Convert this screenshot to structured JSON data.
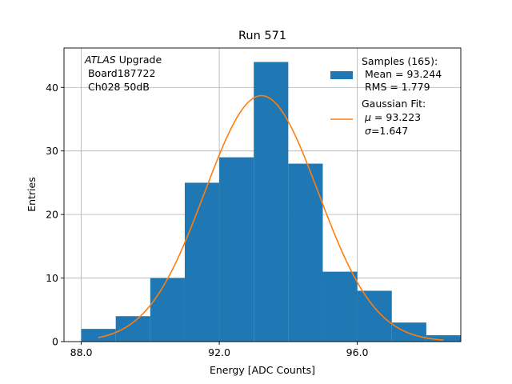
{
  "chart_data": {
    "type": "bar",
    "title": "Run 571",
    "xlabel": "Energy [ADC Counts]",
    "ylabel": "Entries",
    "xlim": [
      87.5,
      99.0
    ],
    "ylim": [
      0,
      46.2
    ],
    "x_ticks": [
      88.0,
      92.0,
      96.0
    ],
    "x_tick_labels": [
      "88.0",
      "92.0",
      "96.0"
    ],
    "y_ticks": [
      0,
      10,
      20,
      30,
      40
    ],
    "y_tick_labels": [
      "0",
      "10",
      "20",
      "30",
      "40"
    ],
    "grid": true,
    "legend_position": "top-right",
    "histogram": {
      "name": "Samples (165):",
      "color": "#1f77b4",
      "bin_edges": [
        88.0,
        89.0,
        90.0,
        91.0,
        92.0,
        93.0,
        94.0,
        95.0,
        96.0,
        97.0,
        98.0,
        99.0
      ],
      "bins": [
        {
          "x0": 88.0,
          "x1": 89.0,
          "count": 2
        },
        {
          "x0": 89.0,
          "x1": 90.0,
          "count": 4
        },
        {
          "x0": 90.0,
          "x1": 91.0,
          "count": 10
        },
        {
          "x0": 91.0,
          "x1": 92.0,
          "count": 25
        },
        {
          "x0": 92.0,
          "x1": 93.0,
          "count": 29
        },
        {
          "x0": 93.0,
          "x1": 94.0,
          "count": 44
        },
        {
          "x0": 94.0,
          "x1": 95.0,
          "count": 28
        },
        {
          "x0": 95.0,
          "x1": 96.0,
          "count": 11
        },
        {
          "x0": 96.0,
          "x1": 97.0,
          "count": 8
        },
        {
          "x0": 97.0,
          "x1": 98.0,
          "count": 3
        },
        {
          "x0": 98.0,
          "x1": 99.0,
          "count": 1
        }
      ]
    },
    "fit": {
      "name": "Gaussian Fit:",
      "color": "#ff7f0e",
      "mu": 93.223,
      "sigma": 1.647,
      "amplitude": 38.7,
      "x_range": [
        88.5,
        98.5
      ]
    },
    "legend": {
      "samples_lines": [
        "Samples (165):",
        " Mean = 93.244",
        " RMS = 1.779"
      ],
      "fit_line1": "Gaussian Fit:",
      "fit_mu_symbol": "μ",
      "fit_mu_text": " = 93.223",
      "fit_sigma_symbol": "σ",
      "fit_sigma_text": "=1.647"
    },
    "annotation": {
      "atlas": "ATLAS",
      "upgrade": " Upgrade",
      "board": " Board187722",
      "channel": " Ch028 50dB"
    }
  }
}
